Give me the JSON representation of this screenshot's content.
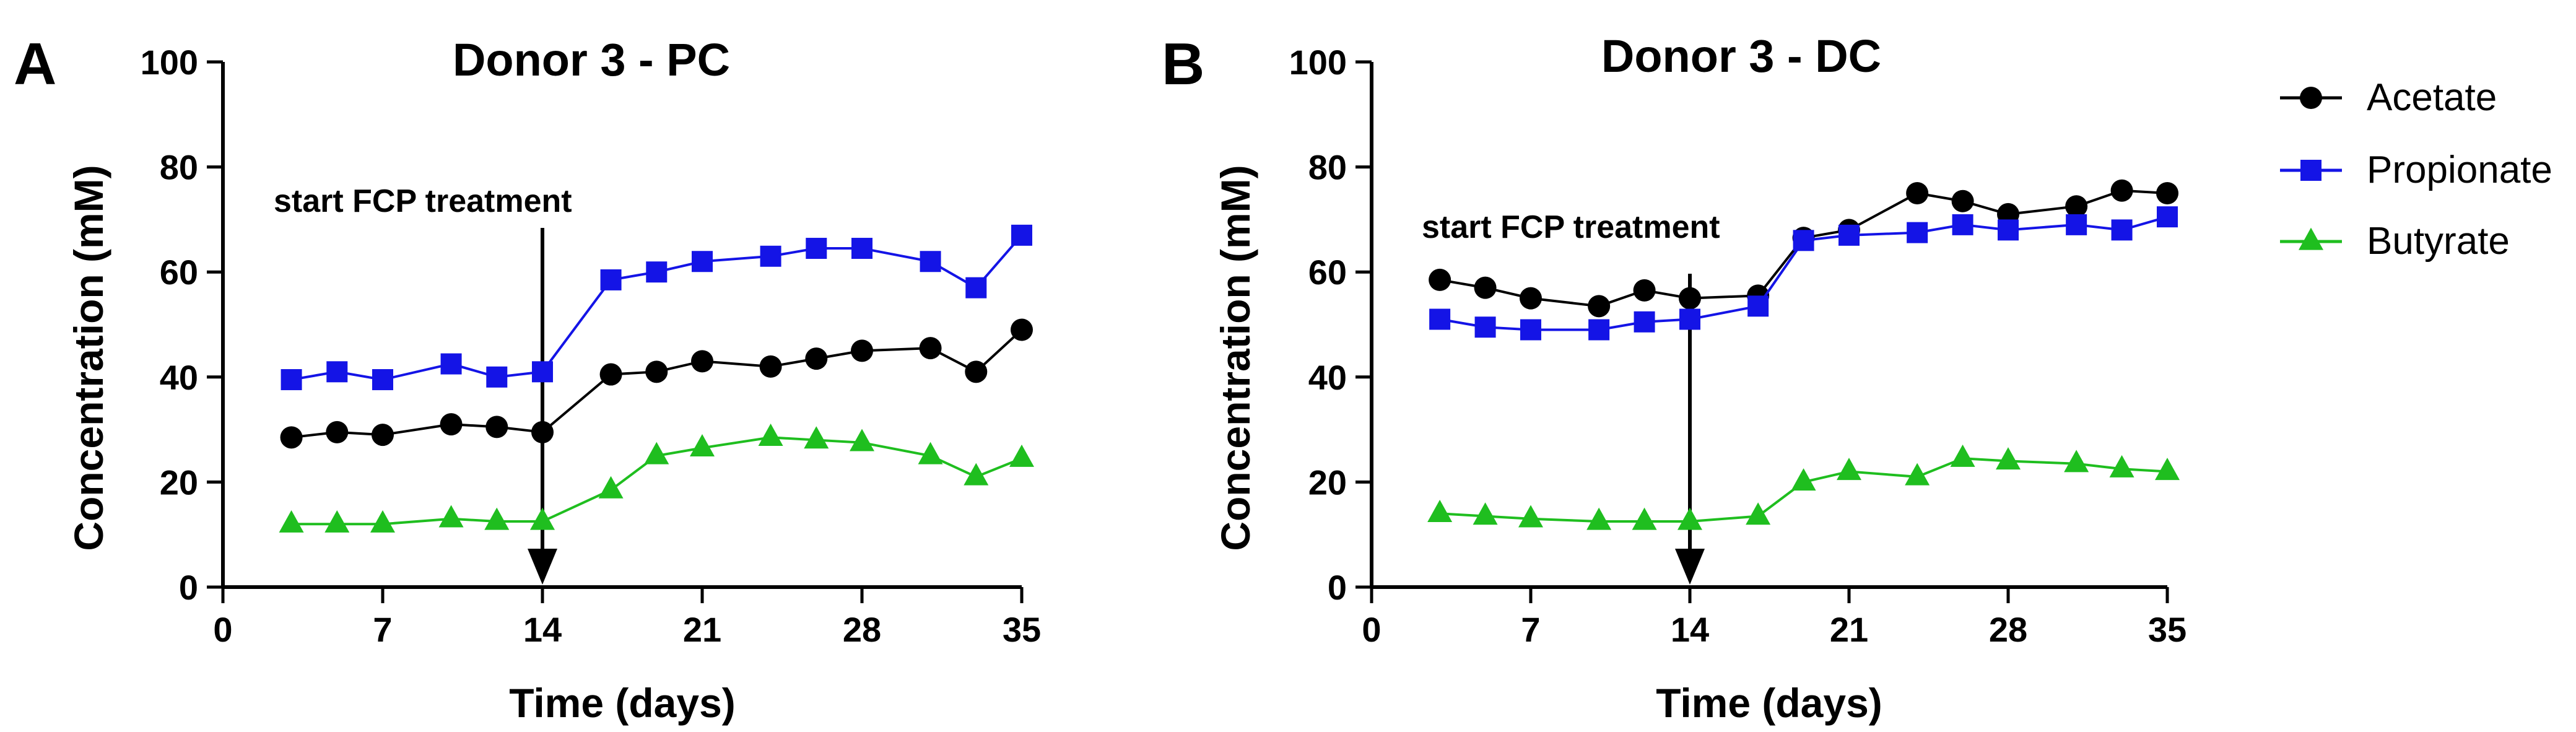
{
  "colors": {
    "Acetate": "#000000",
    "Propionate": "#1414e6",
    "Butyrate": "#1fbe1f"
  },
  "markers": {
    "Acetate": "circle",
    "Propionate": "square",
    "Butyrate": "triangle"
  },
  "legend": {
    "placement": "right",
    "items": [
      "Acetate",
      "Propionate",
      "Butyrate"
    ]
  },
  "chart_data": [
    {
      "type": "line",
      "panel": "A",
      "title": "Donor 3 - PC",
      "xlabel": "Time (days)",
      "ylabel": "Concentration (mM)",
      "xlim": [
        0,
        35
      ],
      "ylim": [
        0,
        100
      ],
      "xticks": [
        0,
        7,
        14,
        21,
        28,
        35
      ],
      "yticks": [
        0,
        20,
        40,
        60,
        80,
        100
      ],
      "grid": false,
      "annotation": {
        "text": "start FCP treatment",
        "x": 14
      },
      "series": [
        {
          "name": "Acetate",
          "x": [
            3,
            5,
            7,
            10,
            12,
            14,
            17,
            19,
            21,
            24,
            26,
            28,
            31,
            33,
            35
          ],
          "values": [
            28.5,
            29.5,
            29,
            31,
            30.5,
            29.5,
            40.5,
            41,
            43,
            42,
            43.5,
            45,
            45.5,
            41,
            49
          ]
        },
        {
          "name": "Propionate",
          "x": [
            3,
            5,
            7,
            10,
            12,
            14,
            17,
            19,
            21,
            24,
            26,
            28,
            31,
            33,
            35
          ],
          "values": [
            39.5,
            41,
            39.5,
            42.5,
            40,
            41,
            58.5,
            60,
            62,
            63,
            64.5,
            64.5,
            62,
            57,
            67
          ]
        },
        {
          "name": "Butyrate",
          "x": [
            3,
            5,
            7,
            10,
            12,
            14,
            17,
            19,
            21,
            24,
            26,
            28,
            31,
            33,
            35
          ],
          "values": [
            12,
            12,
            12,
            13,
            12.5,
            12.5,
            18.5,
            25,
            26.5,
            28.5,
            28,
            27.5,
            25,
            21,
            24.5
          ]
        }
      ]
    },
    {
      "type": "line",
      "panel": "B",
      "title": "Donor 3 - DC",
      "xlabel": "Time (days)",
      "ylabel": "Concentration (mM)",
      "xlim": [
        0,
        35
      ],
      "ylim": [
        0,
        100
      ],
      "xticks": [
        0,
        7,
        14,
        21,
        28,
        35
      ],
      "yticks": [
        0,
        20,
        40,
        60,
        80,
        100
      ],
      "grid": false,
      "annotation": {
        "text": "start FCP treatment",
        "x": 14
      },
      "series": [
        {
          "name": "Acetate",
          "x": [
            3,
            5,
            7,
            10,
            12,
            14,
            17,
            19,
            21,
            24,
            26,
            28,
            31,
            33,
            35
          ],
          "values": [
            58.5,
            57,
            55,
            53.5,
            56.5,
            55,
            55.5,
            66.5,
            68,
            75,
            73.5,
            71,
            72.5,
            75.5,
            75
          ]
        },
        {
          "name": "Propionate",
          "x": [
            3,
            5,
            7,
            10,
            12,
            14,
            17,
            19,
            21,
            24,
            26,
            28,
            31,
            33,
            35
          ],
          "values": [
            51,
            49.5,
            49,
            49,
            50.5,
            51,
            53.5,
            66,
            67,
            67.5,
            69,
            68,
            69,
            68,
            70.5
          ]
        },
        {
          "name": "Butyrate",
          "x": [
            3,
            5,
            7,
            10,
            12,
            14,
            17,
            19,
            21,
            24,
            26,
            28,
            31,
            33,
            35
          ],
          "values": [
            14,
            13.5,
            13,
            12.5,
            12.5,
            12.5,
            13.5,
            20,
            22,
            21,
            24.5,
            24,
            23.5,
            22.5,
            22
          ]
        }
      ]
    }
  ]
}
